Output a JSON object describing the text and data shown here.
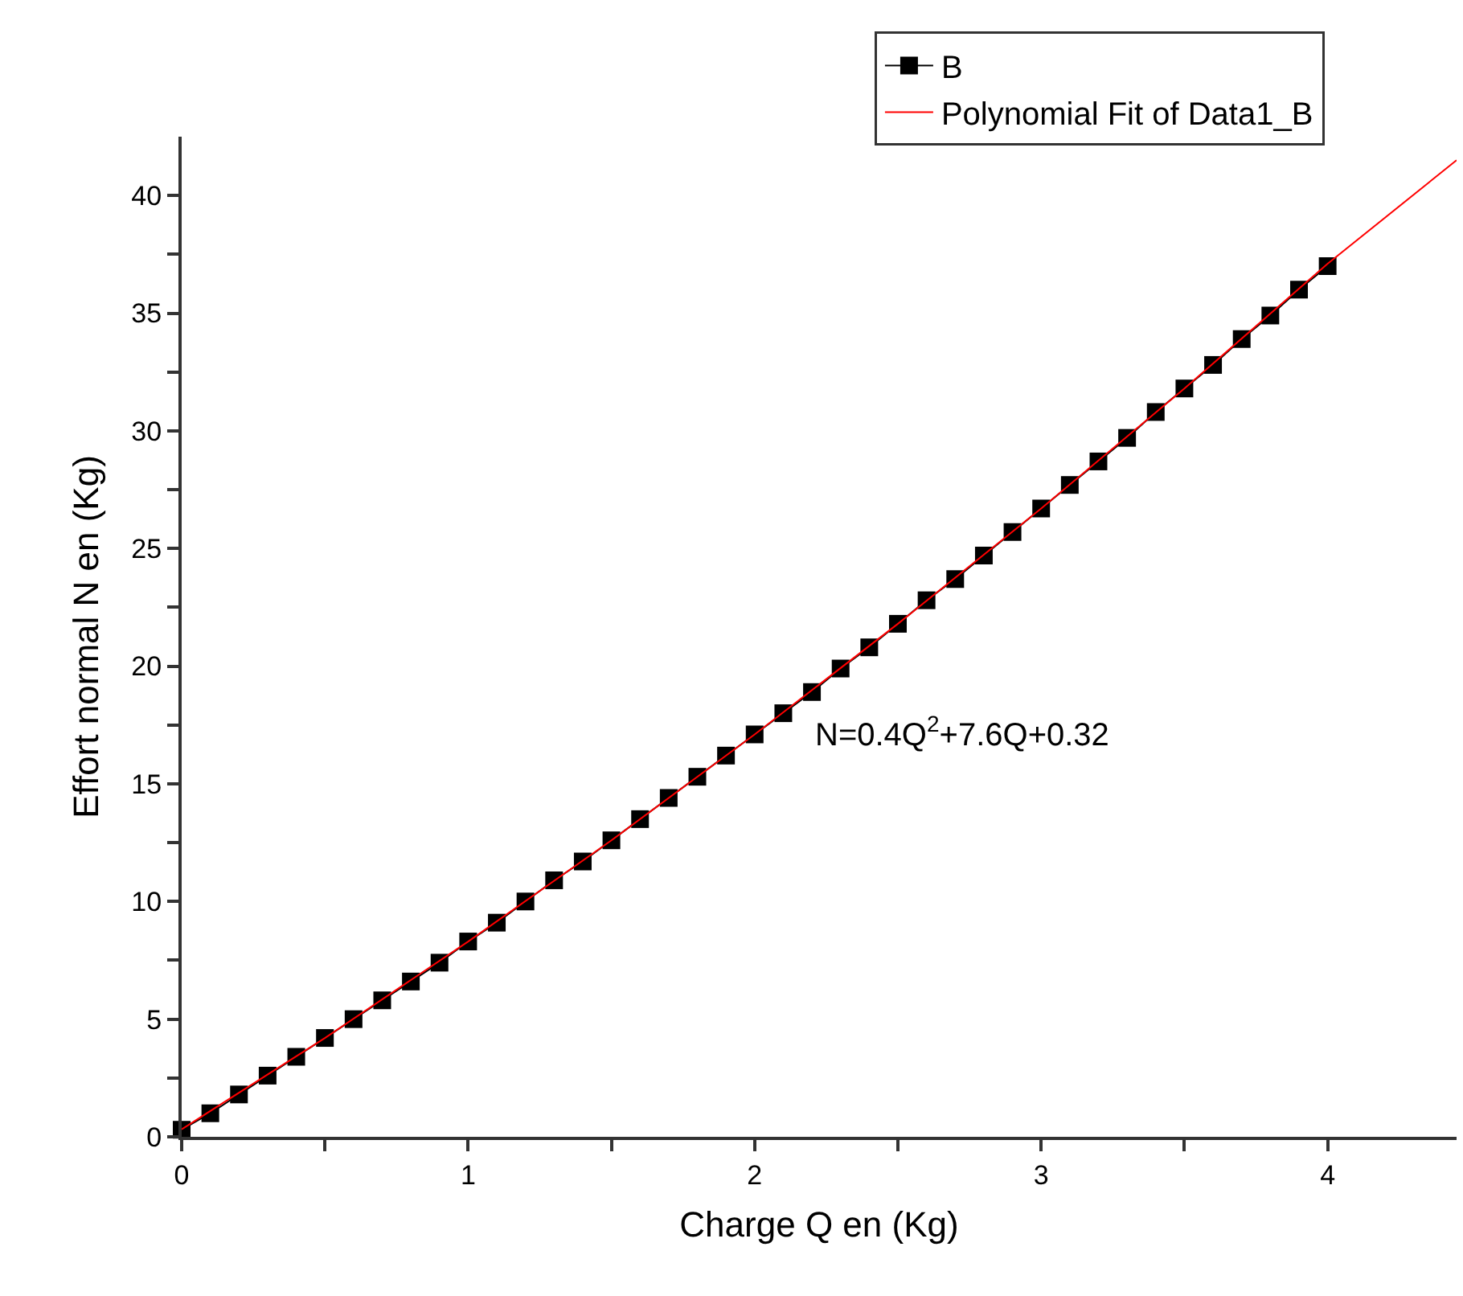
{
  "chart_data": {
    "type": "line",
    "xlabel": "Charge Q en (Kg)",
    "ylabel": "Effort normal N en (Kg)",
    "xlim": [
      0,
      4.45
    ],
    "xticks": [
      0,
      {
        "value": 0.5,
        "label": null
      },
      1,
      {
        "value": 1.5,
        "label": null
      },
      2,
      {
        "value": 2.5,
        "label": null
      },
      3,
      {
        "value": 3.5,
        "label": null
      },
      4
    ],
    "ylim": [
      0,
      42.5
    ],
    "yticks": [
      0,
      {
        "value": 2.5,
        "label": null
      },
      5,
      {
        "value": 7.5,
        "label": null
      },
      10,
      {
        "value": 12.5,
        "label": null
      },
      15,
      {
        "value": 17.5,
        "label": null
      },
      20,
      {
        "value": 22.5,
        "label": null
      },
      25,
      {
        "value": 27.5,
        "label": null
      },
      30,
      {
        "value": 32.5,
        "label": null
      },
      35,
      {
        "value": 37.5,
        "label": null
      },
      40
    ],
    "grid": false,
    "legend": "top",
    "marker": "square",
    "line_style": "solid",
    "annotations": [
      "N=0.4Q$^{2}$+7.6Q+0.32"
    ],
    "series": [
      {
        "name": "B",
        "color": "#000000",
        "x": [
          0,
          0.1,
          0.2,
          0.3,
          0.4,
          0.5,
          0.6,
          0.7,
          0.8,
          0.9,
          1.0,
          1.1,
          1.2,
          1.3,
          1.4,
          1.5,
          1.6,
          1.7,
          1.8,
          1.9,
          2.0,
          2.1,
          2.2,
          2.3,
          2.4,
          2.5,
          2.6,
          2.7,
          2.8,
          2.9,
          3.0,
          3.1,
          3.2,
          3.3,
          3.4,
          3.5,
          3.6,
          3.7,
          3.8,
          3.9,
          4.0
        ],
        "values": [
          0.3,
          1.0,
          1.8,
          2.6,
          3.4,
          4.2,
          5.0,
          5.8,
          6.6,
          7.4,
          8.3,
          9.1,
          10.0,
          10.9,
          11.7,
          12.6,
          13.5,
          14.4,
          15.3,
          16.2,
          17.1,
          18.0,
          18.9,
          19.9,
          20.8,
          21.8,
          22.8,
          23.7,
          24.7,
          25.7,
          26.7,
          27.7,
          28.7,
          29.7,
          30.8,
          31.8,
          32.8,
          33.9,
          34.9,
          36.0,
          37.0
        ]
      },
      {
        "name": "Polynomial Fit of Data1_B",
        "color": "#ff0000",
        "type": "line",
        "marker": "none",
        "x": [
          0,
          0.5,
          1,
          1.5,
          2,
          2.5,
          3,
          3.5,
          4,
          4.45
        ],
        "values": [
          0.32,
          4.2,
          8.3,
          12.6,
          17.1,
          21.8,
          26.7,
          31.8,
          37.1,
          41.5
        ]
      }
    ]
  }
}
